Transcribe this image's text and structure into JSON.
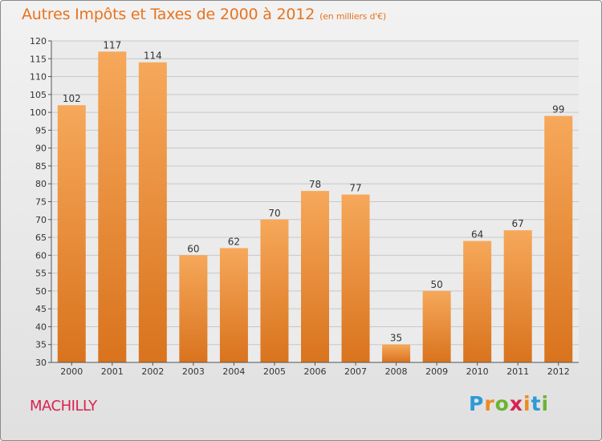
{
  "title": "Autres Impôts et Taxes de 2000 à 2012",
  "subtitle": "(en milliers d'€)",
  "commune": "MACHILLY",
  "brand": {
    "letters": [
      "P",
      "r",
      "o",
      "x",
      "i",
      "t",
      "i"
    ],
    "colors": [
      "#2e9ad6",
      "#ec8a23",
      "#6bb433",
      "#d9224f",
      "#ec8a23",
      "#2e9ad6",
      "#6bb433"
    ]
  },
  "colors": {
    "title": "#e8731e",
    "commune": "#d9224f",
    "bar_light": "#f6a85a",
    "bar_dark": "#d9731d",
    "grid": "#c8c8c8",
    "axis": "#555555",
    "text": "#333333"
  },
  "chart_data": {
    "type": "bar",
    "categories": [
      "2000",
      "2001",
      "2002",
      "2003",
      "2004",
      "2005",
      "2006",
      "2007",
      "2008",
      "2009",
      "2010",
      "2011",
      "2012"
    ],
    "values": [
      102,
      117,
      114,
      60,
      62,
      70,
      78,
      77,
      35,
      50,
      64,
      67,
      99
    ],
    "ylim": [
      30,
      120
    ],
    "yticks": [
      30,
      35,
      40,
      45,
      50,
      55,
      60,
      65,
      70,
      75,
      80,
      85,
      90,
      95,
      100,
      105,
      110,
      115,
      120
    ],
    "grid": true,
    "data_labels": true
  }
}
